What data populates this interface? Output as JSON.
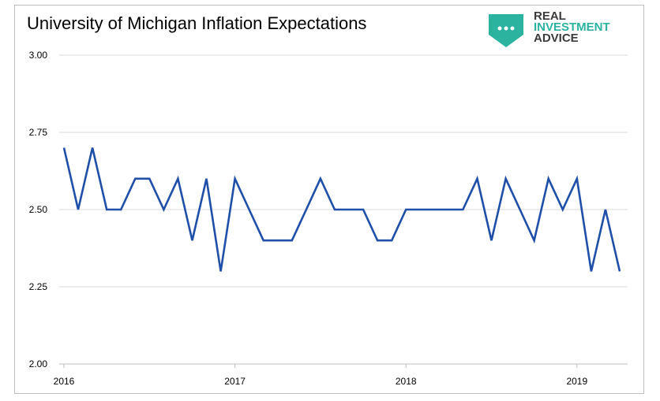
{
  "title": "University of Michigan Inflation Expectations",
  "logo": {
    "line1": "REAL",
    "line2": "INVESTMENT",
    "line3": "ADVICE",
    "shield_color": "#2bb3a0"
  },
  "chart_data": {
    "type": "line",
    "title": "University of Michigan Inflation Expectations",
    "xlabel": "",
    "ylabel": "",
    "ylim": [
      2.0,
      3.0
    ],
    "yticks": [
      "2.00",
      "2.25",
      "2.50",
      "2.75",
      "3.00"
    ],
    "ytick_values": [
      2.0,
      2.25,
      2.5,
      2.75,
      3.0
    ],
    "xtick_labels": [
      "2016",
      "2017",
      "2018",
      "2019"
    ],
    "grid": true,
    "series": [
      {
        "color": "#1f4fa8",
        "x": [
          "2016-01",
          "2016-02",
          "2016-03",
          "2016-04",
          "2016-05",
          "2016-06",
          "2016-07",
          "2016-08",
          "2016-09",
          "2016-10",
          "2016-11",
          "2016-12",
          "2017-01",
          "2017-02",
          "2017-03",
          "2017-04",
          "2017-05",
          "2017-06",
          "2017-07",
          "2017-08",
          "2017-09",
          "2017-10",
          "2017-11",
          "2017-12",
          "2018-01",
          "2018-02",
          "2018-03",
          "2018-04",
          "2018-05",
          "2018-06",
          "2018-07",
          "2018-08",
          "2018-09",
          "2018-10",
          "2018-11",
          "2018-12",
          "2019-01",
          "2019-02",
          "2019-03",
          "2019-04"
        ],
        "values": [
          2.7,
          2.5,
          2.7,
          2.5,
          2.5,
          2.6,
          2.6,
          2.5,
          2.6,
          2.4,
          2.6,
          2.3,
          2.6,
          2.5,
          2.4,
          2.4,
          2.4,
          2.5,
          2.6,
          2.5,
          2.5,
          2.5,
          2.4,
          2.4,
          2.5,
          2.5,
          2.5,
          2.5,
          2.5,
          2.6,
          2.4,
          2.6,
          2.5,
          2.4,
          2.6,
          2.5,
          2.6,
          2.3,
          2.5,
          2.3
        ]
      }
    ]
  }
}
